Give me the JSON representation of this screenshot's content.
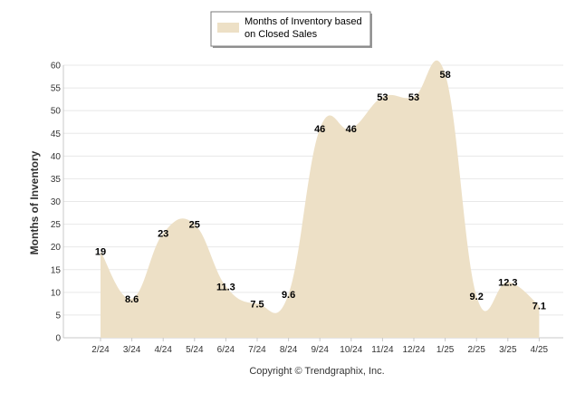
{
  "chart_data": {
    "type": "area",
    "categories": [
      "2/24",
      "3/24",
      "4/24",
      "5/24",
      "6/24",
      "7/24",
      "8/24",
      "9/24",
      "10/24",
      "11/24",
      "12/24",
      "1/25",
      "2/25",
      "3/25",
      "4/25"
    ],
    "series": [
      {
        "name": "Months of Inventory based on Closed Sales",
        "values": [
          19,
          8.6,
          23,
          25,
          11.3,
          7.5,
          9.6,
          46,
          46,
          53,
          53,
          58,
          9.2,
          12.3,
          7.1
        ]
      }
    ],
    "value_labels": [
      "19",
      "8.6",
      "23",
      "25",
      "11.3",
      "7.5",
      "9.6",
      "46",
      "46",
      "53",
      "53",
      "58",
      "9.2",
      "12.3",
      "7.1"
    ],
    "legend_lines": [
      "Months of Inventory based",
      "on Closed Sales"
    ],
    "ylabel": "Months of Inventory",
    "xlabel": "",
    "ylim": [
      0,
      60
    ],
    "yticks": [
      "0",
      "5",
      "10",
      "15",
      "20",
      "25",
      "30",
      "35",
      "40",
      "45",
      "50",
      "55",
      "60"
    ],
    "grid": true,
    "legend_position": "top-center",
    "colors": {
      "area": "#ede0c6",
      "grid": "#e8e8e8",
      "axis": "#c8c8c8"
    }
  },
  "footer": {
    "copyright": "Copyright © Trendgraphix, Inc."
  }
}
